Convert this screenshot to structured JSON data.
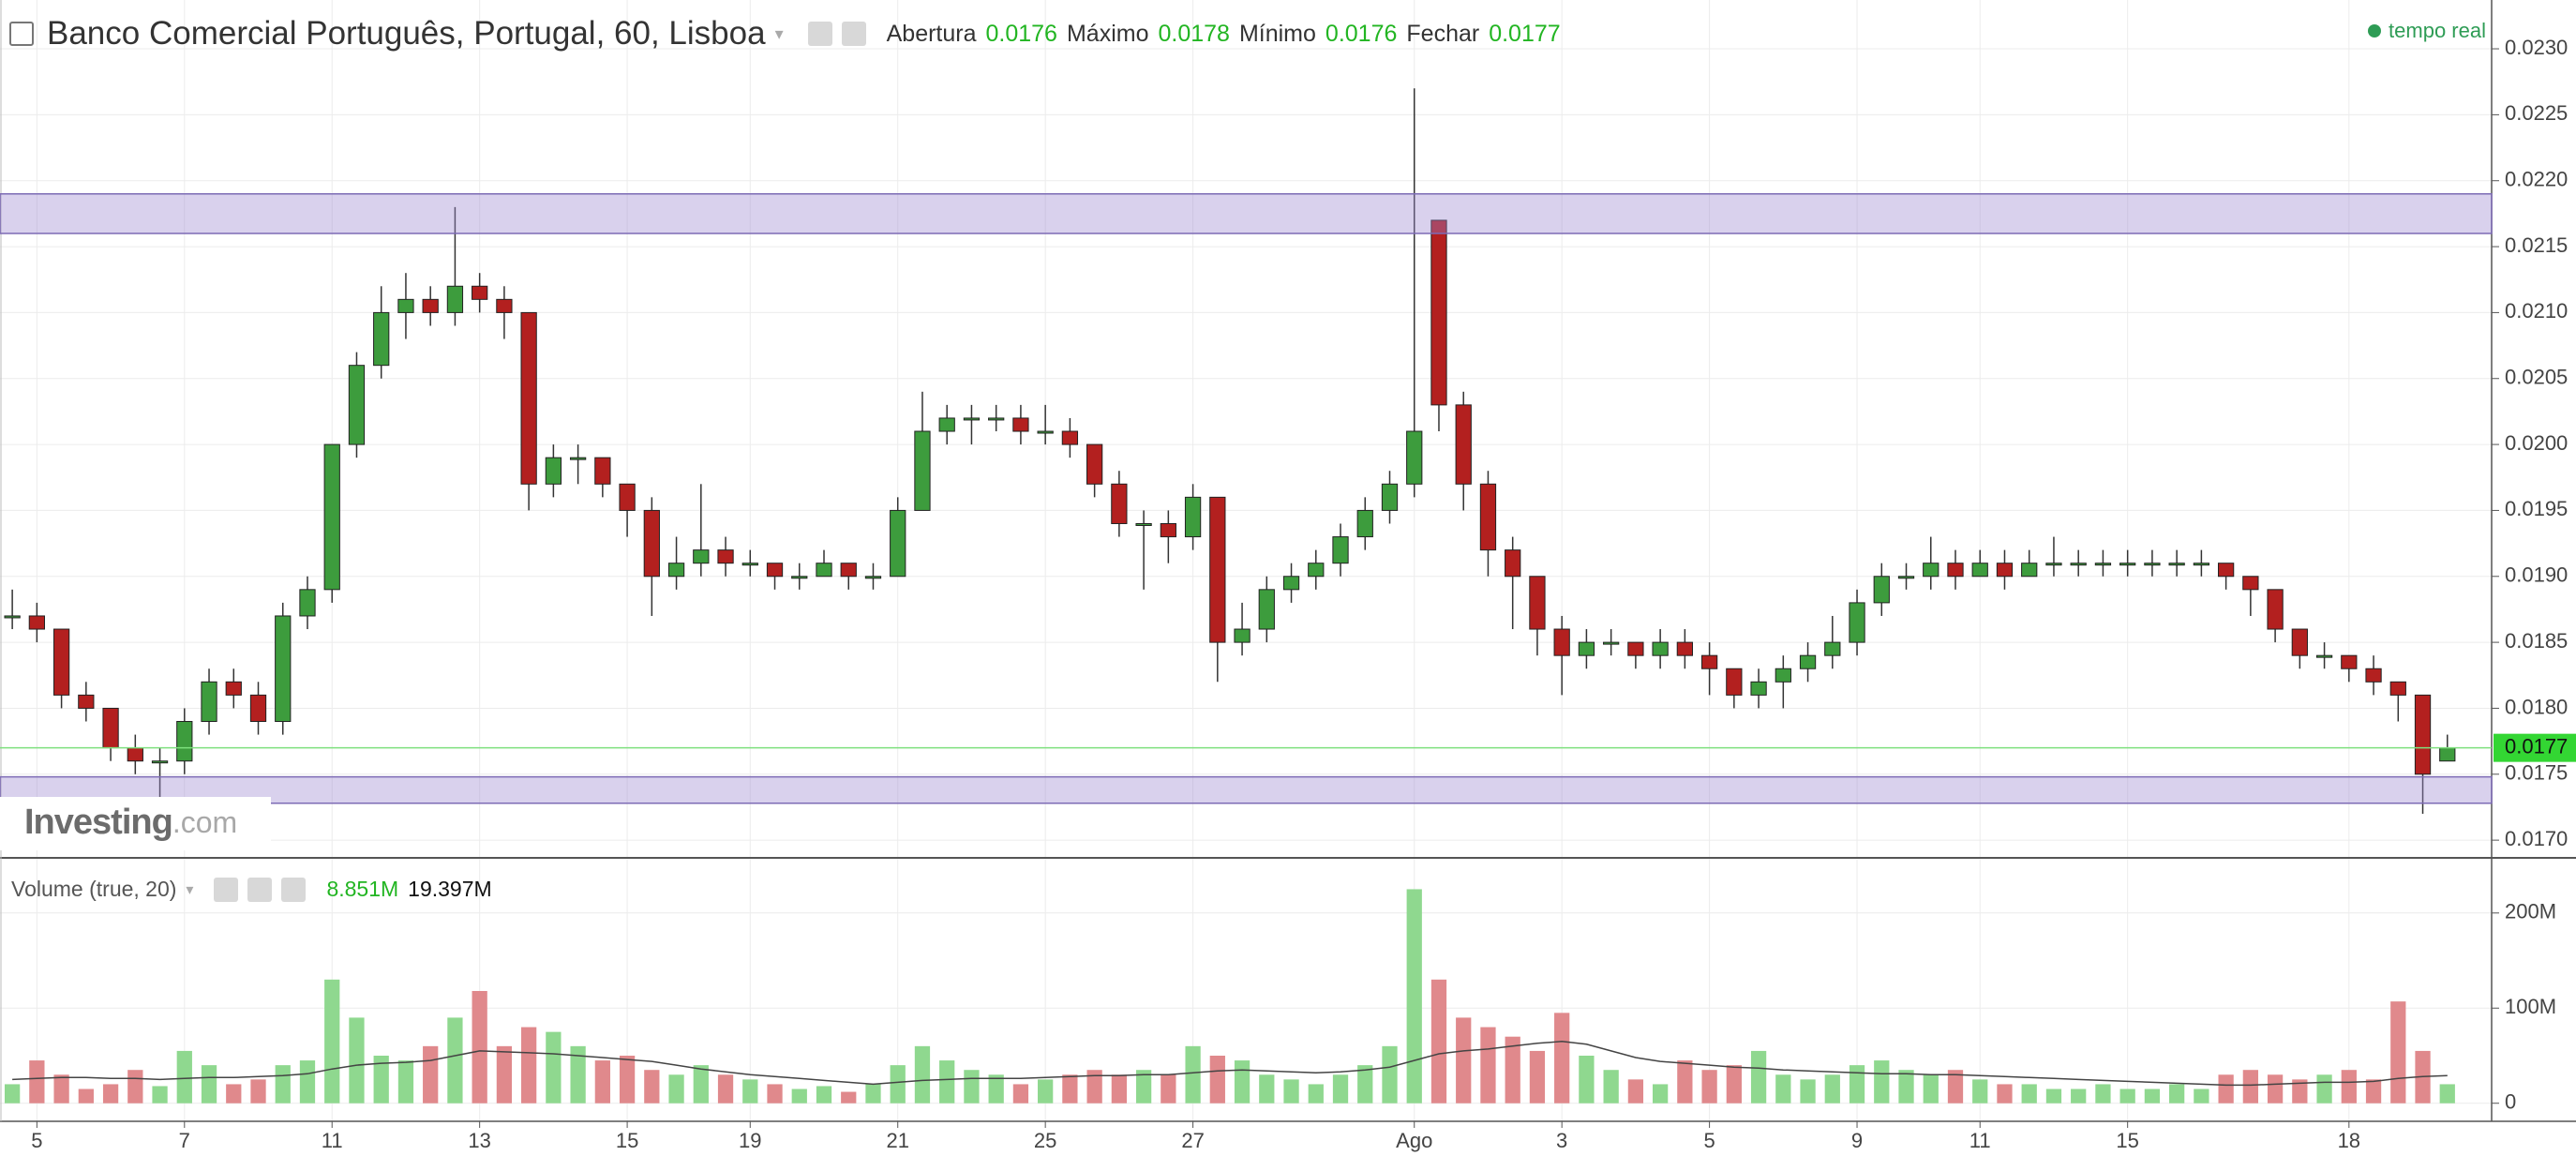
{
  "chart_data": {
    "type": "candlestick",
    "title": "Banco Comercial Português, Portugal, 60, Lisboa",
    "ohlc_header": {
      "labels": [
        "Abertura",
        "Máximo",
        "Mínimo",
        "Fechar"
      ],
      "values": [
        0.0176,
        0.0178,
        0.0176,
        0.0177
      ]
    },
    "status": "tempo real",
    "watermark": [
      "Investing",
      ".com"
    ],
    "categories": [
      null,
      "5",
      null,
      null,
      null,
      null,
      null,
      "7",
      null,
      null,
      null,
      null,
      null,
      "11",
      null,
      null,
      null,
      null,
      null,
      "13",
      null,
      null,
      null,
      null,
      null,
      "15",
      null,
      null,
      null,
      null,
      "19",
      null,
      null,
      null,
      null,
      null,
      "21",
      null,
      null,
      null,
      null,
      null,
      "25",
      null,
      null,
      null,
      null,
      null,
      "27",
      null,
      null,
      null,
      null,
      null,
      null,
      null,
      null,
      "Ago",
      null,
      null,
      null,
      null,
      null,
      "3",
      null,
      null,
      null,
      null,
      null,
      "5",
      null,
      null,
      null,
      null,
      null,
      "9",
      null,
      null,
      null,
      null,
      "11",
      null,
      null,
      null,
      null,
      null,
      "15",
      null,
      null,
      null,
      null,
      null,
      null,
      null,
      null,
      "18",
      null,
      null,
      null,
      null
    ],
    "candles": [
      [
        0.0187,
        0.0189,
        0.0186,
        0.0187
      ],
      [
        0.0187,
        0.0188,
        0.0185,
        0.0186
      ],
      [
        0.0186,
        0.0186,
        0.018,
        0.0181
      ],
      [
        0.0181,
        0.0182,
        0.0179,
        0.018
      ],
      [
        0.018,
        0.018,
        0.0176,
        0.0177
      ],
      [
        0.0177,
        0.0178,
        0.0175,
        0.0176
      ],
      [
        0.0176,
        0.0177,
        0.0173,
        0.0176
      ],
      [
        0.0176,
        0.018,
        0.0175,
        0.0179
      ],
      [
        0.0179,
        0.0183,
        0.0178,
        0.0182
      ],
      [
        0.0182,
        0.0183,
        0.018,
        0.0181
      ],
      [
        0.0181,
        0.0182,
        0.0178,
        0.0179
      ],
      [
        0.0179,
        0.0188,
        0.0178,
        0.0187
      ],
      [
        0.0187,
        0.019,
        0.0186,
        0.0189
      ],
      [
        0.0189,
        0.02,
        0.0188,
        0.02
      ],
      [
        0.02,
        0.0207,
        0.0199,
        0.0206
      ],
      [
        0.0206,
        0.0212,
        0.0205,
        0.021
      ],
      [
        0.021,
        0.0213,
        0.0208,
        0.0211
      ],
      [
        0.0211,
        0.0212,
        0.0209,
        0.021
      ],
      [
        0.021,
        0.0218,
        0.0209,
        0.0212
      ],
      [
        0.0212,
        0.0213,
        0.021,
        0.0211
      ],
      [
        0.0211,
        0.0212,
        0.0208,
        0.021
      ],
      [
        0.021,
        0.021,
        0.0195,
        0.0197
      ],
      [
        0.0197,
        0.02,
        0.0196,
        0.0199
      ],
      [
        0.0199,
        0.02,
        0.0197,
        0.0199
      ],
      [
        0.0199,
        0.0199,
        0.0196,
        0.0197
      ],
      [
        0.0197,
        0.0197,
        0.0193,
        0.0195
      ],
      [
        0.0195,
        0.0196,
        0.0187,
        0.019
      ],
      [
        0.019,
        0.0193,
        0.0189,
        0.0191
      ],
      [
        0.0191,
        0.0197,
        0.019,
        0.0192
      ],
      [
        0.0192,
        0.0193,
        0.019,
        0.0191
      ],
      [
        0.0191,
        0.0192,
        0.019,
        0.0191
      ],
      [
        0.0191,
        0.0191,
        0.0189,
        0.019
      ],
      [
        0.019,
        0.0191,
        0.0189,
        0.019
      ],
      [
        0.019,
        0.0192,
        0.019,
        0.0191
      ],
      [
        0.0191,
        0.0191,
        0.0189,
        0.019
      ],
      [
        0.019,
        0.0191,
        0.0189,
        0.019
      ],
      [
        0.019,
        0.0196,
        0.019,
        0.0195
      ],
      [
        0.0195,
        0.0204,
        0.0195,
        0.0201
      ],
      [
        0.0201,
        0.0203,
        0.02,
        0.0202
      ],
      [
        0.0202,
        0.0203,
        0.02,
        0.0202
      ],
      [
        0.0202,
        0.0203,
        0.0201,
        0.0202
      ],
      [
        0.0202,
        0.0203,
        0.02,
        0.0201
      ],
      [
        0.0201,
        0.0203,
        0.02,
        0.0201
      ],
      [
        0.0201,
        0.0202,
        0.0199,
        0.02
      ],
      [
        0.02,
        0.02,
        0.0196,
        0.0197
      ],
      [
        0.0197,
        0.0198,
        0.0193,
        0.0194
      ],
      [
        0.0194,
        0.0195,
        0.0189,
        0.0194
      ],
      [
        0.0194,
        0.0195,
        0.0191,
        0.0193
      ],
      [
        0.0193,
        0.0197,
        0.0192,
        0.0196
      ],
      [
        0.0196,
        0.0196,
        0.0182,
        0.0185
      ],
      [
        0.0185,
        0.0188,
        0.0184,
        0.0186
      ],
      [
        0.0186,
        0.019,
        0.0185,
        0.0189
      ],
      [
        0.0189,
        0.0191,
        0.0188,
        0.019
      ],
      [
        0.019,
        0.0192,
        0.0189,
        0.0191
      ],
      [
        0.0191,
        0.0194,
        0.019,
        0.0193
      ],
      [
        0.0193,
        0.0196,
        0.0192,
        0.0195
      ],
      [
        0.0195,
        0.0198,
        0.0194,
        0.0197
      ],
      [
        0.0197,
        0.0227,
        0.0196,
        0.0201
      ],
      [
        0.0217,
        0.0217,
        0.0201,
        0.0203
      ],
      [
        0.0203,
        0.0204,
        0.0195,
        0.0197
      ],
      [
        0.0197,
        0.0198,
        0.019,
        0.0192
      ],
      [
        0.0192,
        0.0193,
        0.0186,
        0.019
      ],
      [
        0.019,
        0.019,
        0.0184,
        0.0186
      ],
      [
        0.0186,
        0.0187,
        0.0181,
        0.0184
      ],
      [
        0.0184,
        0.0186,
        0.0183,
        0.0185
      ],
      [
        0.0185,
        0.0186,
        0.0184,
        0.0185
      ],
      [
        0.0185,
        0.0185,
        0.0183,
        0.0184
      ],
      [
        0.0184,
        0.0186,
        0.0183,
        0.0185
      ],
      [
        0.0185,
        0.0186,
        0.0183,
        0.0184
      ],
      [
        0.0184,
        0.0185,
        0.0181,
        0.0183
      ],
      [
        0.0183,
        0.0183,
        0.018,
        0.0181
      ],
      [
        0.0181,
        0.0183,
        0.018,
        0.0182
      ],
      [
        0.0182,
        0.0184,
        0.018,
        0.0183
      ],
      [
        0.0183,
        0.0185,
        0.0182,
        0.0184
      ],
      [
        0.0184,
        0.0187,
        0.0183,
        0.0185
      ],
      [
        0.0185,
        0.0189,
        0.0184,
        0.0188
      ],
      [
        0.0188,
        0.0191,
        0.0187,
        0.019
      ],
      [
        0.019,
        0.0191,
        0.0189,
        0.019
      ],
      [
        0.019,
        0.0193,
        0.0189,
        0.0191
      ],
      [
        0.0191,
        0.0192,
        0.0189,
        0.019
      ],
      [
        0.019,
        0.0192,
        0.019,
        0.0191
      ],
      [
        0.0191,
        0.0192,
        0.0189,
        0.019
      ],
      [
        0.019,
        0.0192,
        0.019,
        0.0191
      ],
      [
        0.0191,
        0.0193,
        0.019,
        0.0191
      ],
      [
        0.0191,
        0.0192,
        0.019,
        0.0191
      ],
      [
        0.0191,
        0.0192,
        0.019,
        0.0191
      ],
      [
        0.0191,
        0.0192,
        0.019,
        0.0191
      ],
      [
        0.0191,
        0.0192,
        0.019,
        0.0191
      ],
      [
        0.0191,
        0.0192,
        0.019,
        0.0191
      ],
      [
        0.0191,
        0.0192,
        0.019,
        0.0191
      ],
      [
        0.0191,
        0.0191,
        0.0189,
        0.019
      ],
      [
        0.019,
        0.019,
        0.0187,
        0.0189
      ],
      [
        0.0189,
        0.0189,
        0.0185,
        0.0186
      ],
      [
        0.0186,
        0.0186,
        0.0183,
        0.0184
      ],
      [
        0.0184,
        0.0185,
        0.0183,
        0.0184
      ],
      [
        0.0184,
        0.0184,
        0.0182,
        0.0183
      ],
      [
        0.0183,
        0.0184,
        0.0181,
        0.0182
      ],
      [
        0.0182,
        0.0182,
        0.0179,
        0.0181
      ],
      [
        0.0181,
        0.0181,
        0.0172,
        0.0175
      ],
      [
        0.0176,
        0.0178,
        0.0176,
        0.0177
      ]
    ],
    "up_color": "#3d9c3d",
    "down_color": "#b3201f",
    "ylim": [
      0.01688,
      0.02337
    ],
    "yticks": [
      {
        "value": 0.017,
        "label": "0.0170"
      },
      0.0175,
      {
        "value": 0.018,
        "label": "0.0180"
      },
      0.0185,
      {
        "value": 0.019,
        "label": "0.0190"
      },
      0.0195,
      {
        "value": 0.02,
        "label": "0.0200"
      },
      0.0205,
      {
        "value": 0.021,
        "label": "0.0210"
      },
      0.0215,
      {
        "value": 0.022,
        "label": "0.0220"
      },
      0.0225,
      {
        "value": 0.023,
        "label": "0.0230"
      }
    ],
    "zones": [
      [
        0.0216,
        0.0219
      ],
      [
        0.01728,
        0.01748
      ]
    ],
    "zone_color": "#9b86cf",
    "last_price": 0.0177,
    "grid": true,
    "volume": {
      "title": "Volume (true, 20)",
      "current": "8.851M",
      "average": "19.397M",
      "values": [
        20,
        45,
        30,
        15,
        20,
        35,
        18,
        55,
        40,
        20,
        25,
        40,
        45,
        130,
        90,
        50,
        45,
        60,
        90,
        118,
        60,
        80,
        75,
        60,
        45,
        50,
        35,
        30,
        40,
        30,
        25,
        20,
        15,
        18,
        12,
        20,
        40,
        60,
        45,
        35,
        30,
        20,
        25,
        30,
        35,
        30,
        35,
        30,
        60,
        50,
        45,
        30,
        25,
        20,
        30,
        40,
        60,
        225,
        130,
        90,
        80,
        70,
        55,
        95,
        50,
        35,
        25,
        20,
        45,
        35,
        40,
        55,
        30,
        25,
        30,
        40,
        45,
        35,
        30,
        35,
        25,
        20,
        20,
        15,
        15,
        20,
        15,
        15,
        20,
        15,
        30,
        35,
        30,
        25,
        30,
        35,
        25,
        107,
        55,
        20
      ],
      "ma": [
        25,
        26,
        27,
        27,
        26,
        26,
        25,
        26,
        27,
        27,
        28,
        29,
        31,
        36,
        40,
        42,
        43,
        45,
        50,
        55,
        54,
        53,
        52,
        50,
        48,
        46,
        44,
        40,
        36,
        33,
        30,
        28,
        26,
        24,
        22,
        20,
        22,
        24,
        25,
        26,
        26,
        26,
        27,
        28,
        29,
        29,
        30,
        30,
        32,
        34,
        35,
        34,
        33,
        32,
        33,
        35,
        38,
        45,
        52,
        55,
        57,
        60,
        63,
        65,
        62,
        55,
        48,
        44,
        42,
        40,
        38,
        37,
        35,
        34,
        33,
        32,
        31,
        31,
        30,
        30,
        29,
        28,
        27,
        26,
        25,
        24,
        23,
        22,
        21,
        20,
        19,
        19,
        20,
        21,
        22,
        22,
        23,
        26,
        28,
        29
      ],
      "up_color": "#8fd88f",
      "down_color": "#e0898c",
      "ma_color": "#444444",
      "ylim": [
        -19,
        255
      ],
      "yticks": [
        0,
        {
          "value": 100,
          "label": "100M"
        },
        {
          "value": 200,
          "label": "200M"
        }
      ]
    }
  }
}
